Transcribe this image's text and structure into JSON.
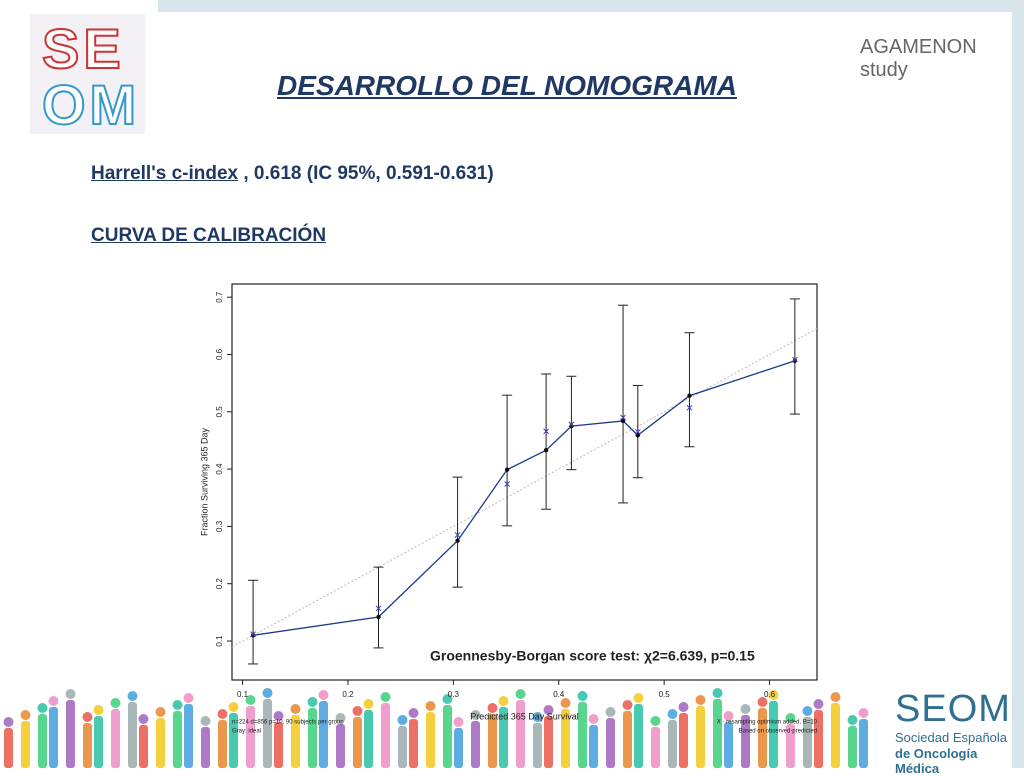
{
  "header": {
    "logo_top": "SE",
    "logo_bottom": "OM",
    "partner_logo": "AGAMENON study",
    "title": "DESARROLLO DEL NOMOGRAMA",
    "c_index_label": "Harrell's c-index",
    "c_index_value": ", 0.618 (IC 95%, 0.591-0.631)",
    "section": "CURVA DE CALIBRACIÓN"
  },
  "footer_logo": {
    "name": "SEOM",
    "line1": "Sociedad Española",
    "line2": "de Oncología Médica"
  },
  "chart_data": {
    "type": "line",
    "x_label": "Predicted 365 Day Survival",
    "y_label": "Fraction Surviving 365 Day",
    "annotation": "Groennesby-Borgan score test: χ2=6.639, p=0.15",
    "notes_left": [
      "n=224 d=856 p=10, 90 subjects per group",
      "Gray: ideal"
    ],
    "notes_right": [
      "X - resampling optimism added, B=10",
      "Based on observed-predicted"
    ],
    "x": [
      0.11,
      0.229,
      0.304,
      0.351,
      0.388,
      0.412,
      0.461,
      0.475,
      0.524,
      0.624
    ],
    "series": [
      {
        "color": "#1a3a8c",
        "marker": "dot",
        "values": [
          0.11,
          0.142,
          0.275,
          0.399,
          0.433,
          0.475,
          0.484,
          0.459,
          0.528,
          0.589
        ],
        "lower": [
          0.06,
          0.088,
          0.194,
          0.301,
          0.33,
          0.399,
          0.341,
          0.385,
          0.439,
          0.496
        ],
        "upper": [
          0.206,
          0.229,
          0.386,
          0.529,
          0.566,
          0.562,
          0.686,
          0.546,
          0.638,
          0.697
        ]
      },
      {
        "color": "#4040c0",
        "marker": "x",
        "values": [
          0.112,
          0.157,
          0.285,
          0.374,
          0.466,
          0.478,
          0.49,
          0.465,
          0.507,
          0.591
        ]
      }
    ],
    "xlim": [
      0.09,
      0.645
    ],
    "ylim": [
      0.032,
      0.723
    ],
    "xticks": [
      0.1,
      0.2,
      0.3,
      0.4,
      0.5,
      0.6
    ],
    "yticks": [
      0.1,
      0.2,
      0.3,
      0.4,
      0.5,
      0.6,
      0.7
    ],
    "ideal_line": true,
    "ideal_color": "#bbbbbb",
    "grid": false
  }
}
